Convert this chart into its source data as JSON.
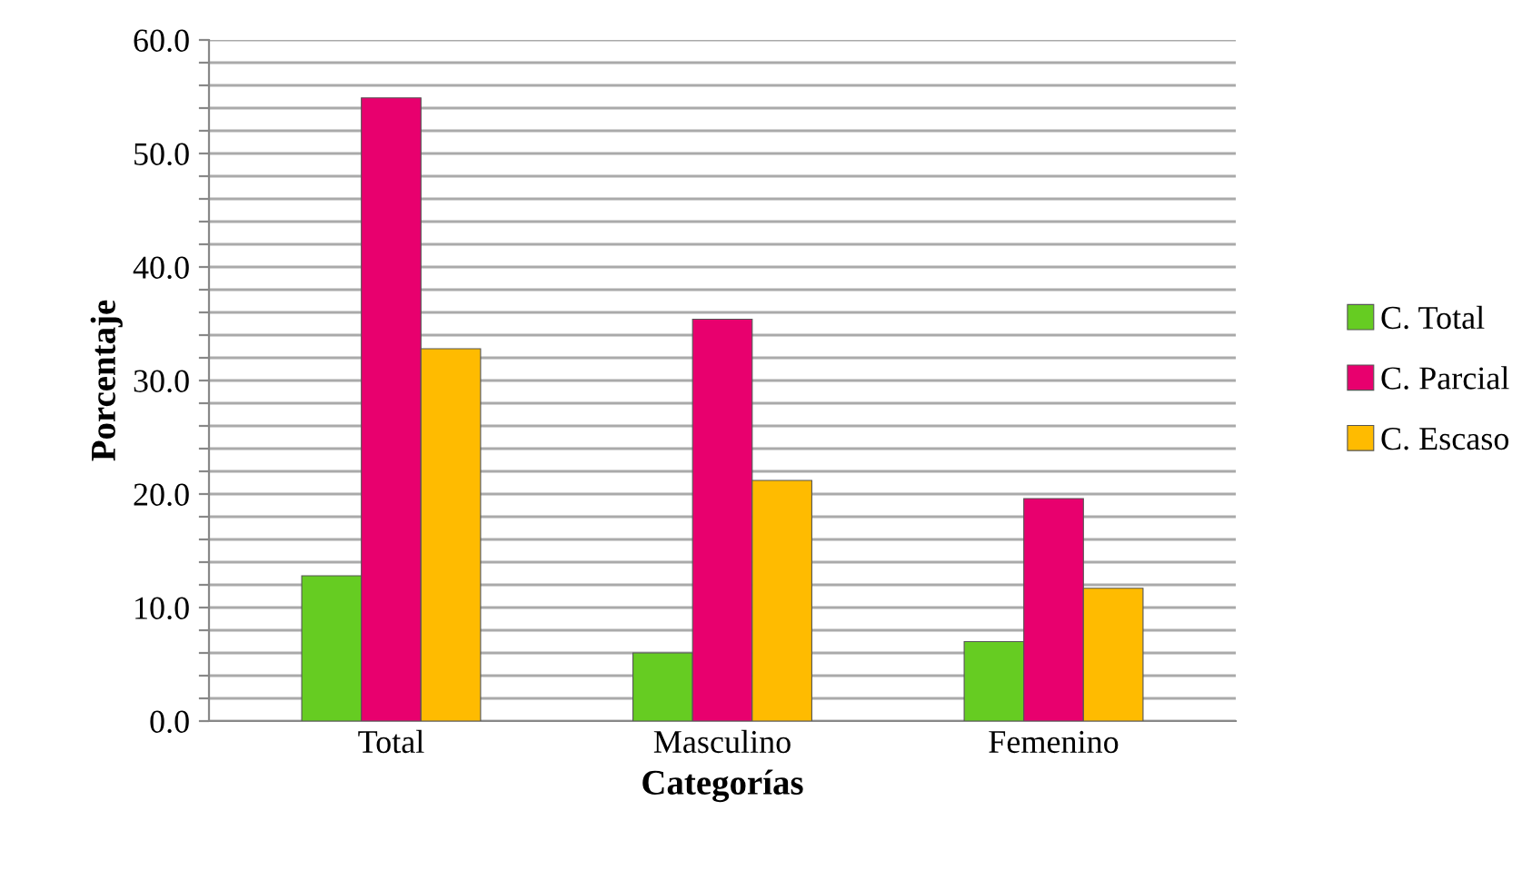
{
  "chart_data": {
    "type": "bar",
    "xlabel": "Categorías",
    "ylabel": "Porcentaje",
    "categories": [
      "Total",
      "Masculino",
      "Femenino"
    ],
    "series": [
      {
        "name": "C. Total",
        "color": "#66cc22",
        "values": [
          12.8,
          6.0,
          7.0
        ]
      },
      {
        "name": "C. Parcial",
        "color": "#e8006e",
        "values": [
          54.9,
          35.4,
          19.6
        ]
      },
      {
        "name": "C. Escaso",
        "color": "#ffbb00",
        "values": [
          32.8,
          21.2,
          11.7
        ]
      }
    ],
    "ylim": [
      0,
      60
    ],
    "yticks": [
      {
        "value": 0,
        "label": "0.0"
      },
      {
        "value": 2,
        "label": null
      },
      {
        "value": 4,
        "label": null
      },
      {
        "value": 6,
        "label": null
      },
      {
        "value": 8,
        "label": null
      },
      {
        "value": 10,
        "label": "10.0"
      },
      {
        "value": 12,
        "label": null
      },
      {
        "value": 14,
        "label": null
      },
      {
        "value": 16,
        "label": null
      },
      {
        "value": 18,
        "label": null
      },
      {
        "value": 20,
        "label": "20.0"
      },
      {
        "value": 22,
        "label": null
      },
      {
        "value": 24,
        "label": null
      },
      {
        "value": 26,
        "label": null
      },
      {
        "value": 28,
        "label": null
      },
      {
        "value": 30,
        "label": "30.0"
      },
      {
        "value": 32,
        "label": null
      },
      {
        "value": 34,
        "label": null
      },
      {
        "value": 36,
        "label": null
      },
      {
        "value": 38,
        "label": null
      },
      {
        "value": 40,
        "label": "40.0"
      },
      {
        "value": 42,
        "label": null
      },
      {
        "value": 44,
        "label": null
      },
      {
        "value": 46,
        "label": null
      },
      {
        "value": 48,
        "label": null
      },
      {
        "value": 50,
        "label": "50.0"
      },
      {
        "value": 52,
        "label": null
      },
      {
        "value": 54,
        "label": null
      },
      {
        "value": 56,
        "label": null
      },
      {
        "value": 58,
        "label": null
      },
      {
        "value": 60,
        "label": "60.0"
      }
    ],
    "grid": "y",
    "legend": "right"
  }
}
